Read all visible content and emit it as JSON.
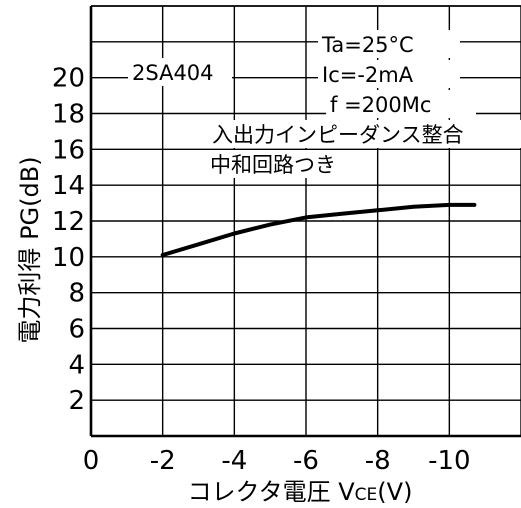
{
  "chart_data": {
    "type": "line",
    "title": "",
    "xlabel": "コレクタ電圧 VCE(V)",
    "xlabel_main": "コレクタ電圧 V",
    "xlabel_sub": "CE",
    "xlabel_unit": "(V)",
    "ylabel": "電力利得 PG(dB)",
    "xlim": [
      0,
      -12
    ],
    "ylim": [
      0,
      24
    ],
    "x_ticks": [
      0,
      -2,
      -4,
      -6,
      -8,
      -10
    ],
    "x_tick_labels": [
      "0",
      "-2",
      "-4",
      "-6",
      "-8",
      "-10"
    ],
    "y_ticks": [
      2,
      4,
      6,
      8,
      10,
      12,
      14,
      16,
      18,
      20
    ],
    "y_tick_labels": [
      "2",
      "4",
      "6",
      "8",
      "10",
      "12",
      "14",
      "16",
      "18",
      "20"
    ],
    "grid": true,
    "series": [
      {
        "x": [
          -2,
          -3,
          -4,
          -5,
          -6,
          -7,
          -8,
          -9,
          -10,
          -10.7
        ],
        "y": [
          10.1,
          10.7,
          11.3,
          11.8,
          12.2,
          12.4,
          12.6,
          12.8,
          12.9,
          12.9
        ]
      }
    ],
    "annotations": {
      "device": "2SA404",
      "ta": "Ta=25°C",
      "ic": "Ic=-2mA",
      "f": "f =200Mc",
      "note_line1": "入出力インピーダンス整合",
      "note_line2": "中和回路つき"
    }
  }
}
